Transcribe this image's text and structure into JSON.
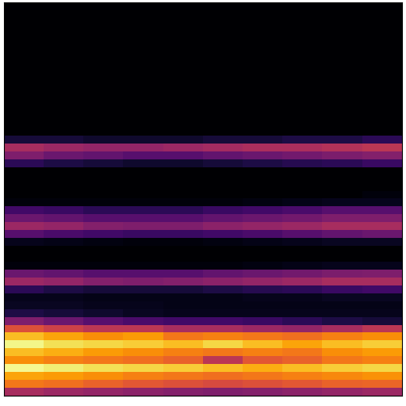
{
  "chart_data": {
    "type": "heatmap",
    "color": "inferno",
    "tick_labels": false,
    "color_range": [
      0,
      1
    ],
    "cells": [
      [
        0,
        0,
        0,
        0,
        0,
        0,
        0,
        0,
        0,
        0
      ],
      [
        0,
        0,
        0,
        0,
        0,
        0,
        0,
        0,
        0,
        0
      ],
      [
        0,
        0,
        0,
        0,
        0,
        0,
        0,
        0,
        0,
        0
      ],
      [
        0,
        0,
        0,
        0,
        0,
        0,
        0,
        0,
        0,
        0
      ],
      [
        0,
        0,
        0,
        0,
        0,
        0,
        0,
        0,
        0,
        0
      ],
      [
        0,
        0,
        0,
        0,
        0,
        0,
        0,
        0,
        0,
        0
      ],
      [
        0,
        0,
        0,
        0,
        0,
        0,
        0,
        0,
        0,
        0
      ],
      [
        0,
        0,
        0,
        0,
        0,
        0,
        0,
        0,
        0,
        0
      ],
      [
        0,
        0,
        0,
        0,
        0,
        0,
        0,
        0,
        0,
        0
      ],
      [
        0,
        0,
        0,
        0,
        0,
        0,
        0,
        0,
        0,
        0
      ],
      [
        0,
        0,
        0,
        0,
        0,
        0,
        0,
        0,
        0,
        0
      ],
      [
        0,
        0,
        0,
        0,
        0,
        0,
        0,
        0,
        0,
        0
      ],
      [
        0,
        0,
        0,
        0,
        0,
        0,
        0,
        0,
        0,
        0
      ],
      [
        0,
        0,
        0,
        0,
        0,
        0,
        0,
        0,
        0,
        0
      ],
      [
        0,
        0,
        0,
        0,
        0,
        0,
        0,
        0,
        0,
        0
      ],
      [
        0,
        0,
        0,
        0,
        0,
        0,
        0,
        0,
        0,
        0
      ],
      [
        0,
        0,
        0,
        0,
        0,
        0,
        0,
        0,
        0,
        0
      ],
      [
        0.1,
        0.1,
        0.08,
        0.08,
        0.08,
        0.1,
        0.1,
        0.12,
        0.12,
        0.15
      ],
      [
        0.45,
        0.42,
        0.4,
        0.4,
        0.42,
        0.44,
        0.46,
        0.46,
        0.48,
        0.5
      ],
      [
        0.35,
        0.3,
        0.28,
        0.25,
        0.25,
        0.28,
        0.3,
        0.32,
        0.34,
        0.36
      ],
      [
        0.15,
        0.12,
        0.1,
        0.08,
        0.08,
        0.1,
        0.12,
        0.14,
        0.15,
        0.18
      ],
      [
        0,
        0,
        0,
        0,
        0,
        0,
        0,
        0,
        0,
        0
      ],
      [
        0,
        0,
        0,
        0,
        0,
        0,
        0,
        0,
        0,
        0
      ],
      [
        0,
        0,
        0,
        0,
        0,
        0,
        0,
        0,
        0,
        0
      ],
      [
        0,
        0,
        0,
        0,
        0,
        0,
        0,
        0,
        0,
        0.02
      ],
      [
        0.02,
        0.02,
        0.02,
        0.02,
        0.02,
        0.02,
        0.03,
        0.04,
        0.05,
        0.05
      ],
      [
        0.2,
        0.18,
        0.15,
        0.15,
        0.15,
        0.18,
        0.2,
        0.22,
        0.25,
        0.25
      ],
      [
        0.3,
        0.28,
        0.25,
        0.25,
        0.25,
        0.28,
        0.3,
        0.32,
        0.35,
        0.35
      ],
      [
        0.42,
        0.4,
        0.36,
        0.35,
        0.35,
        0.38,
        0.4,
        0.42,
        0.45,
        0.45
      ],
      [
        0.25,
        0.22,
        0.2,
        0.18,
        0.18,
        0.2,
        0.22,
        0.25,
        0.28,
        0.3
      ],
      [
        0.05,
        0.04,
        0.03,
        0.02,
        0.02,
        0.03,
        0.04,
        0.05,
        0.06,
        0.06
      ],
      [
        0,
        0,
        0,
        0,
        0,
        0,
        0,
        0,
        0,
        0
      ],
      [
        0,
        0,
        0,
        0,
        0,
        0,
        0,
        0,
        0,
        0
      ],
      [
        0.02,
        0.02,
        0.02,
        0.02,
        0.02,
        0.02,
        0.03,
        0.04,
        0.05,
        0.05
      ],
      [
        0.3,
        0.28,
        0.25,
        0.25,
        0.25,
        0.28,
        0.3,
        0.32,
        0.34,
        0.35
      ],
      [
        0.42,
        0.4,
        0.36,
        0.35,
        0.36,
        0.38,
        0.4,
        0.42,
        0.45,
        0.45
      ],
      [
        0.15,
        0.12,
        0.1,
        0.1,
        0.1,
        0.12,
        0.14,
        0.15,
        0.18,
        0.2
      ],
      [
        0.05,
        0.05,
        0.04,
        0.04,
        0.04,
        0.04,
        0.05,
        0.05,
        0.06,
        0.06
      ],
      [
        0.06,
        0.06,
        0.05,
        0.05,
        0.04,
        0.04,
        0.04,
        0.04,
        0.04,
        0.04
      ],
      [
        0.12,
        0.1,
        0.08,
        0.06,
        0.05,
        0.05,
        0.05,
        0.05,
        0.05,
        0.05
      ],
      [
        0.35,
        0.3,
        0.25,
        0.22,
        0.2,
        0.2,
        0.18,
        0.15,
        0.12,
        0.1
      ],
      [
        0.6,
        0.55,
        0.5,
        0.5,
        0.45,
        0.45,
        0.42,
        0.4,
        0.45,
        0.5
      ],
      [
        0.85,
        0.8,
        0.75,
        0.78,
        0.7,
        0.72,
        0.7,
        0.68,
        0.72,
        0.75
      ],
      [
        0.97,
        0.92,
        0.9,
        0.88,
        0.85,
        0.9,
        0.85,
        0.8,
        0.85,
        0.88
      ],
      [
        0.85,
        0.82,
        0.78,
        0.75,
        0.72,
        0.7,
        0.72,
        0.7,
        0.75,
        0.78
      ],
      [
        0.75,
        0.72,
        0.7,
        0.68,
        0.65,
        0.5,
        0.62,
        0.65,
        0.7,
        0.72
      ],
      [
        0.98,
        0.95,
        0.92,
        0.9,
        0.88,
        0.85,
        0.82,
        0.85,
        0.88,
        0.9
      ],
      [
        0.8,
        0.78,
        0.75,
        0.72,
        0.7,
        0.68,
        0.7,
        0.72,
        0.74,
        0.76
      ],
      [
        0.7,
        0.68,
        0.65,
        0.62,
        0.6,
        0.58,
        0.6,
        0.62,
        0.65,
        0.66
      ],
      [
        0.45,
        0.42,
        0.4,
        0.38,
        0.36,
        0.35,
        0.36,
        0.38,
        0.4,
        0.42
      ]
    ]
  }
}
